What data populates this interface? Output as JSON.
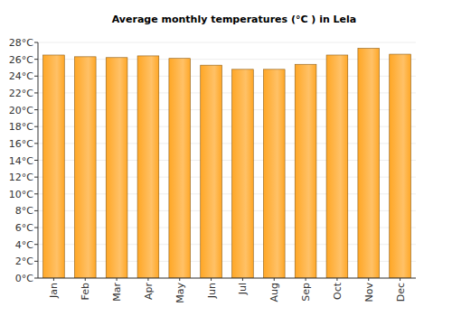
{
  "chart_data": {
    "type": "bar",
    "title": "Average monthly temperatures (°C ) in Lela",
    "categories": [
      "Jan",
      "Feb",
      "Mar",
      "Apr",
      "May",
      "Jun",
      "Jul",
      "Aug",
      "Sep",
      "Oct",
      "Nov",
      "Dec"
    ],
    "values": [
      26.5,
      26.3,
      26.2,
      26.4,
      26.1,
      25.3,
      24.8,
      24.8,
      25.4,
      26.5,
      27.3,
      26.6
    ],
    "color": "#ffa726",
    "ylim": [
      0,
      28
    ],
    "yticks": [
      {
        "value": 0,
        "label": "0°C"
      },
      {
        "value": 2,
        "label": "2°C"
      },
      {
        "value": 4,
        "label": "4°C"
      },
      {
        "value": 6,
        "label": "6°C"
      },
      {
        "value": 8,
        "label": "8°C"
      },
      {
        "value": 10,
        "label": "10°C"
      },
      {
        "value": 12,
        "label": "12°C"
      },
      {
        "value": 14,
        "label": "14°C"
      },
      {
        "value": 16,
        "label": "16°C"
      },
      {
        "value": 18,
        "label": "18°C"
      },
      {
        "value": 20,
        "label": "20°C"
      },
      {
        "value": 22,
        "label": "22°C"
      },
      {
        "value": 24,
        "label": "24°C"
      },
      {
        "value": 26,
        "label": "26°C"
      },
      {
        "value": 28,
        "label": "28°C"
      }
    ],
    "grid": true
  }
}
